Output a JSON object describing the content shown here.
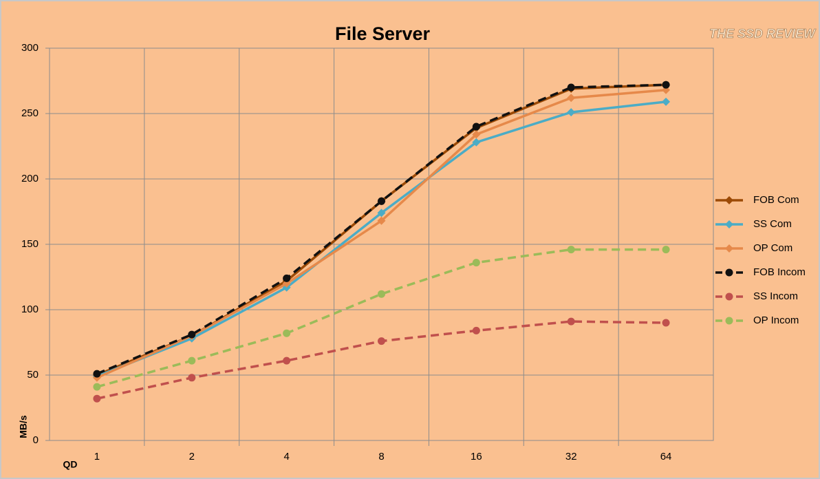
{
  "chart_data": {
    "type": "line",
    "title": "File Server",
    "logo": "THE SSD REVIEW",
    "x_label": "QD",
    "y_label": "MB/s",
    "categories": [
      "1",
      "2",
      "4",
      "8",
      "16",
      "32",
      "64"
    ],
    "ylim": [
      0,
      300
    ],
    "yticks": [
      0,
      50,
      100,
      150,
      200,
      250,
      300
    ],
    "grid": true,
    "legend": "right",
    "series": [
      {
        "name": "FOB Com",
        "color": "#9c4a06",
        "line_style": "solid",
        "marker": "diamond",
        "values": [
          50,
          80,
          122,
          183,
          239,
          269,
          272
        ]
      },
      {
        "name": "SS Com",
        "color": "#4bacc6",
        "line_style": "solid",
        "marker": "diamond",
        "values": [
          49,
          78,
          117,
          174,
          228,
          251,
          259
        ]
      },
      {
        "name": "OP Com",
        "color": "#e6894a",
        "line_style": "solid",
        "marker": "diamond",
        "values": [
          48,
          80,
          120,
          168,
          234,
          262,
          268
        ]
      },
      {
        "name": "FOB Incom",
        "color": "#111111",
        "line_style": "dashed",
        "marker": "circle",
        "values": [
          51,
          81,
          124,
          183,
          240,
          270,
          272
        ]
      },
      {
        "name": "SS Incom",
        "color": "#c0504d",
        "line_style": "dashed",
        "marker": "circle",
        "values": [
          32,
          48,
          61,
          76,
          84,
          91,
          90
        ]
      },
      {
        "name": "OP Incom",
        "color": "#9bbb59",
        "line_style": "dashed",
        "marker": "circle",
        "values": [
          41,
          61,
          82,
          112,
          136,
          146,
          146
        ]
      }
    ]
  }
}
